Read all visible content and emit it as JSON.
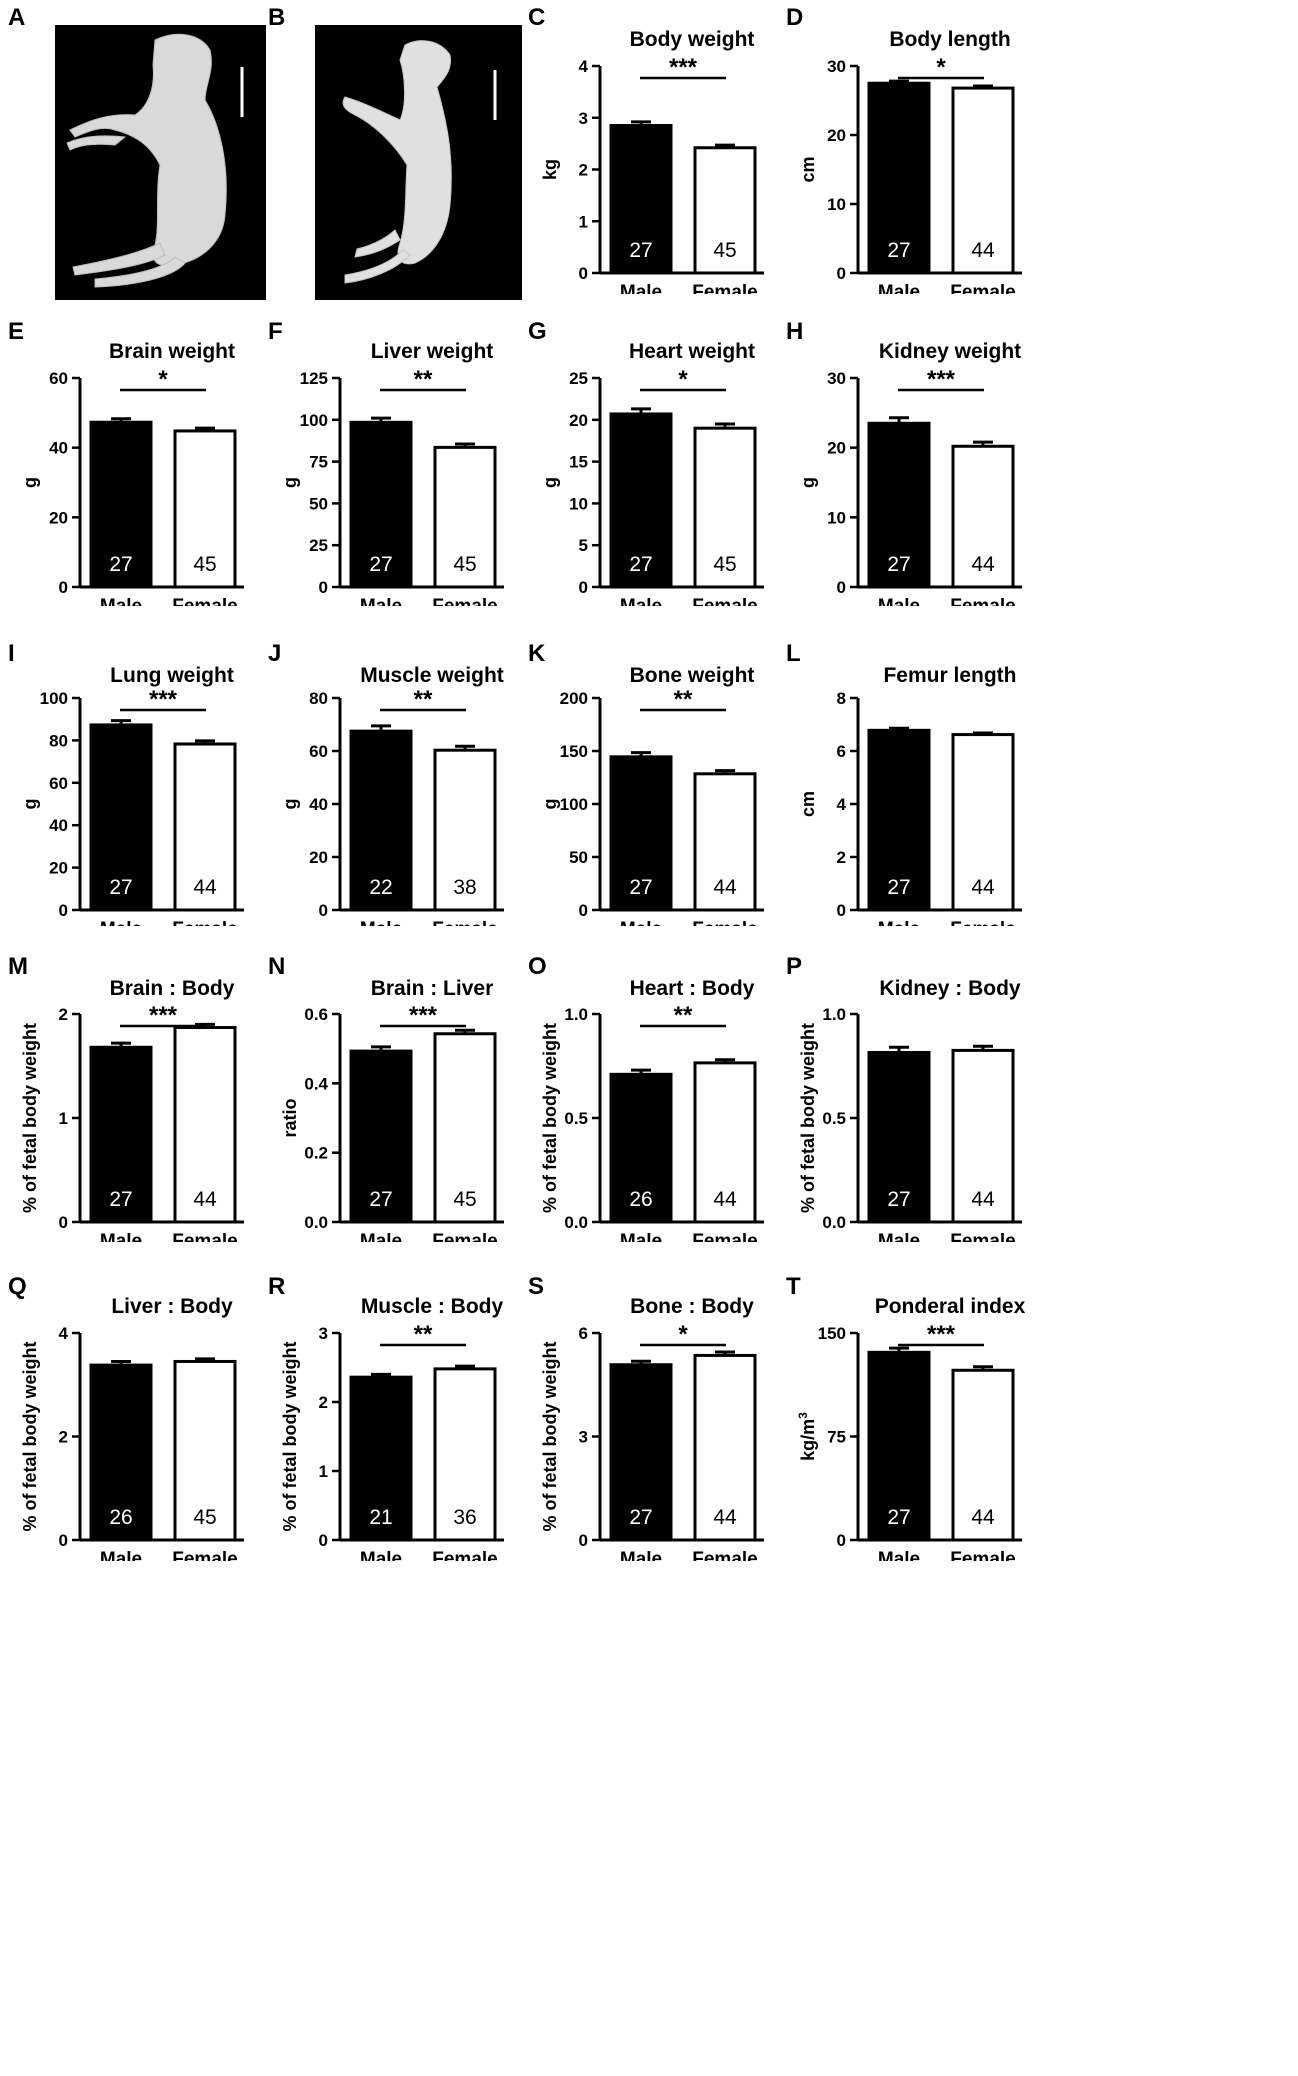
{
  "figure": {
    "photos": [
      {
        "panel": "A",
        "subject": "male fetus"
      },
      {
        "panel": "B",
        "subject": "female fetus"
      }
    ],
    "panel_letters": [
      "A",
      "B",
      "C",
      "D",
      "E",
      "F",
      "G",
      "H",
      "I",
      "J",
      "K",
      "L",
      "M",
      "N",
      "O",
      "P",
      "Q",
      "R",
      "S",
      "T"
    ]
  },
  "chart_data": [
    {
      "panel": "C",
      "type": "bar",
      "title": "Body weight",
      "ylabel": "kg",
      "categories": [
        "Male",
        "Female"
      ],
      "values": [
        2.85,
        2.42
      ],
      "errors": [
        0.07,
        0.05
      ],
      "n": [
        "27",
        "45"
      ],
      "ylim": [
        0,
        4
      ],
      "ticks": [
        0,
        1,
        2,
        3,
        4
      ],
      "tick_labels": [
        "0",
        "1",
        "2",
        "3",
        "4"
      ],
      "sig": "***"
    },
    {
      "panel": "D",
      "type": "bar",
      "title": "Body length",
      "ylabel": "cm",
      "categories": [
        "Male",
        "Female"
      ],
      "values": [
        27.5,
        26.8
      ],
      "errors": [
        0.3,
        0.3
      ],
      "n": [
        "27",
        "44"
      ],
      "ylim": [
        0,
        30
      ],
      "ticks": [
        0,
        10,
        20,
        30
      ],
      "tick_labels": [
        "0",
        "10",
        "20",
        "30"
      ],
      "sig": "*"
    },
    {
      "panel": "E",
      "type": "bar",
      "title": "Brain weight",
      "ylabel": "g",
      "categories": [
        "Male",
        "Female"
      ],
      "values": [
        47.3,
        44.8
      ],
      "errors": [
        1.0,
        0.8
      ],
      "n": [
        "27",
        "45"
      ],
      "ylim": [
        0,
        60
      ],
      "ticks": [
        0,
        20,
        40,
        60
      ],
      "tick_labels": [
        "0",
        "20",
        "40",
        "60"
      ],
      "sig": "*"
    },
    {
      "panel": "F",
      "type": "bar",
      "title": "Liver weight",
      "ylabel": "g",
      "categories": [
        "Male",
        "Female"
      ],
      "values": [
        98.5,
        83.5
      ],
      "errors": [
        2.5,
        2.0
      ],
      "n": [
        "27",
        "45"
      ],
      "ylim": [
        0,
        125
      ],
      "ticks": [
        0,
        25,
        50,
        75,
        100,
        125
      ],
      "tick_labels": [
        "0",
        "25",
        "50",
        "75",
        "100",
        "125"
      ],
      "sig": "**"
    },
    {
      "panel": "G",
      "type": "bar",
      "title": "Heart weight",
      "ylabel": "g",
      "categories": [
        "Male",
        "Female"
      ],
      "values": [
        20.7,
        19.0
      ],
      "errors": [
        0.6,
        0.5
      ],
      "n": [
        "27",
        "45"
      ],
      "ylim": [
        0,
        25
      ],
      "ticks": [
        0,
        5,
        10,
        15,
        20,
        25
      ],
      "tick_labels": [
        "0",
        "5",
        "10",
        "15",
        "20",
        "25"
      ],
      "sig": "*"
    },
    {
      "panel": "H",
      "type": "bar",
      "title": "Kidney weight",
      "ylabel": "g",
      "categories": [
        "Male",
        "Female"
      ],
      "values": [
        23.5,
        20.2
      ],
      "errors": [
        0.8,
        0.6
      ],
      "n": [
        "27",
        "44"
      ],
      "ylim": [
        0,
        30
      ],
      "ticks": [
        0,
        10,
        20,
        30
      ],
      "tick_labels": [
        "0",
        "10",
        "20",
        "30"
      ],
      "sig": "***"
    },
    {
      "panel": "I",
      "type": "bar",
      "title": "Lung weight",
      "ylabel": "g",
      "categories": [
        "Male",
        "Female"
      ],
      "values": [
        87.3,
        78.3
      ],
      "errors": [
        2.0,
        1.5
      ],
      "n": [
        "27",
        "44"
      ],
      "ylim": [
        0,
        100
      ],
      "ticks": [
        0,
        20,
        40,
        60,
        80,
        100
      ],
      "tick_labels": [
        "0",
        "20",
        "40",
        "60",
        "80",
        "100"
      ],
      "sig": "***"
    },
    {
      "panel": "J",
      "type": "bar",
      "title": "Muscle weight",
      "ylabel": "g",
      "categories": [
        "Male",
        "Female"
      ],
      "values": [
        67.5,
        60.3
      ],
      "errors": [
        2.0,
        1.5
      ],
      "n": [
        "22",
        "38"
      ],
      "ylim": [
        0,
        80
      ],
      "ticks": [
        0,
        20,
        40,
        60,
        80
      ],
      "tick_labels": [
        "0",
        "20",
        "40",
        "60",
        "80"
      ],
      "sig": "**"
    },
    {
      "panel": "K",
      "type": "bar",
      "title": "Bone weight",
      "ylabel": "g",
      "categories": [
        "Male",
        "Female"
      ],
      "values": [
        144.5,
        128.5
      ],
      "errors": [
        4.0,
        3.0
      ],
      "n": [
        "27",
        "44"
      ],
      "ylim": [
        0,
        200
      ],
      "ticks": [
        0,
        50,
        100,
        150,
        200
      ],
      "tick_labels": [
        "0",
        "50",
        "100",
        "150",
        "200"
      ],
      "sig": "**"
    },
    {
      "panel": "L",
      "type": "bar",
      "title": "Femur length",
      "ylabel": "cm",
      "categories": [
        "Male",
        "Female"
      ],
      "values": [
        6.78,
        6.62
      ],
      "errors": [
        0.08,
        0.06
      ],
      "n": [
        "27",
        "44"
      ],
      "ylim": [
        0,
        8
      ],
      "ticks": [
        0,
        2,
        4,
        6,
        8
      ],
      "tick_labels": [
        "0",
        "2",
        "4",
        "6",
        "8"
      ],
      "sig": ""
    },
    {
      "panel": "M",
      "type": "bar",
      "title": "Brain : Body",
      "ylabel": "% of fetal body weight",
      "categories": [
        "Male",
        "Female"
      ],
      "values": [
        1.68,
        1.87
      ],
      "errors": [
        0.04,
        0.03
      ],
      "n": [
        "27",
        "44"
      ],
      "ylim": [
        0,
        2
      ],
      "ticks": [
        0,
        1,
        2
      ],
      "tick_labels": [
        "0",
        "1",
        "2"
      ],
      "sig": "***"
    },
    {
      "panel": "N",
      "type": "bar",
      "title": "Brain : Liver",
      "ylabel": "ratio",
      "categories": [
        "Male",
        "Female"
      ],
      "values": [
        0.493,
        0.543
      ],
      "errors": [
        0.012,
        0.01
      ],
      "n": [
        "27",
        "45"
      ],
      "ylim": [
        0,
        0.6
      ],
      "ticks": [
        0,
        0.2,
        0.4,
        0.6
      ],
      "tick_labels": [
        "0.0",
        "0.2",
        "0.4",
        "0.6"
      ],
      "sig": "***"
    },
    {
      "panel": "O",
      "type": "bar",
      "title": "Heart : Body",
      "ylabel": "% of fetal body weight",
      "categories": [
        "Male",
        "Female"
      ],
      "values": [
        0.71,
        0.765
      ],
      "errors": [
        0.02,
        0.015
      ],
      "n": [
        "26",
        "44"
      ],
      "ylim": [
        0,
        1
      ],
      "ticks": [
        0,
        0.5,
        1
      ],
      "tick_labels": [
        "0.0",
        "0.5",
        "1.0"
      ],
      "sig": "**"
    },
    {
      "panel": "P",
      "type": "bar",
      "title": "Kidney : Body",
      "ylabel": "% of fetal body weight",
      "categories": [
        "Male",
        "Female"
      ],
      "values": [
        0.815,
        0.825
      ],
      "errors": [
        0.025,
        0.02
      ],
      "n": [
        "27",
        "44"
      ],
      "ylim": [
        0,
        1
      ],
      "ticks": [
        0,
        0.5,
        1
      ],
      "tick_labels": [
        "0.0",
        "0.5",
        "1.0"
      ],
      "sig": ""
    },
    {
      "panel": "Q",
      "type": "bar",
      "title": "Liver : Body",
      "ylabel": "% of fetal body weight",
      "categories": [
        "Male",
        "Female"
      ],
      "values": [
        3.38,
        3.45
      ],
      "errors": [
        0.07,
        0.05
      ],
      "n": [
        "26",
        "45"
      ],
      "ylim": [
        0,
        4
      ],
      "ticks": [
        0,
        2,
        4
      ],
      "tick_labels": [
        "0",
        "2",
        "4"
      ],
      "sig": ""
    },
    {
      "panel": "R",
      "type": "bar",
      "title": "Muscle : Body",
      "ylabel": "% of fetal body weight",
      "categories": [
        "Male",
        "Female"
      ],
      "values": [
        2.36,
        2.48
      ],
      "errors": [
        0.04,
        0.04
      ],
      "n": [
        "21",
        "36"
      ],
      "ylim": [
        0,
        3
      ],
      "ticks": [
        0,
        1,
        2,
        3
      ],
      "tick_labels": [
        "0",
        "1",
        "2",
        "3"
      ],
      "sig": "**"
    },
    {
      "panel": "S",
      "type": "bar",
      "title": "Bone : Body",
      "ylabel": "% of fetal body weight",
      "categories": [
        "Male",
        "Female"
      ],
      "values": [
        5.08,
        5.35
      ],
      "errors": [
        0.1,
        0.1
      ],
      "n": [
        "27",
        "44"
      ],
      "ylim": [
        0,
        6
      ],
      "ticks": [
        0,
        3,
        6
      ],
      "tick_labels": [
        "0",
        "3",
        "6"
      ],
      "sig": "*"
    },
    {
      "panel": "T",
      "type": "bar",
      "title": "Ponderal index",
      "ylabel": "kg/m3",
      "categories": [
        "Male",
        "Female"
      ],
      "values": [
        136,
        123
      ],
      "errors": [
        3,
        2.5
      ],
      "n": [
        "27",
        "44"
      ],
      "ylim": [
        0,
        150
      ],
      "ticks": [
        0,
        75,
        150
      ],
      "tick_labels": [
        "0",
        "75",
        "150"
      ],
      "sig": "***"
    }
  ]
}
